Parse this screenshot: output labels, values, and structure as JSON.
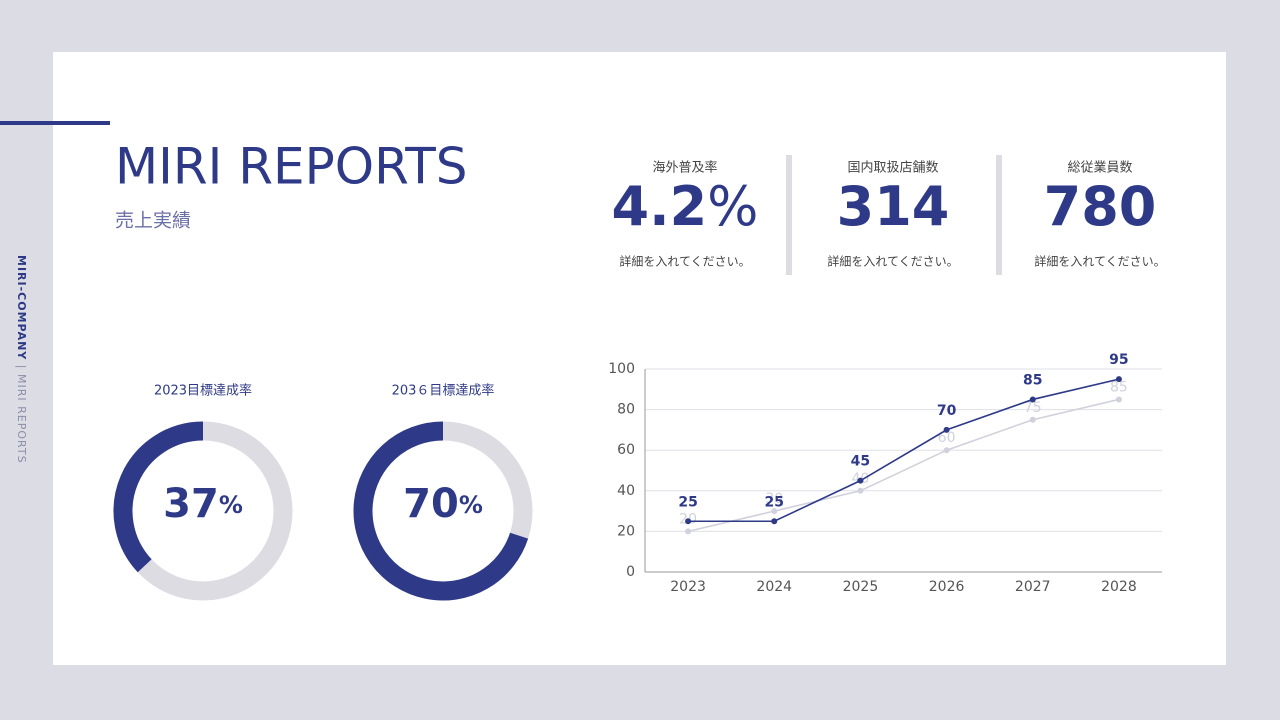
{
  "side": {
    "company": "MIRI-COMPANY",
    "separator": "|",
    "name": "MIRI REPORTS"
  },
  "header": {
    "title": "MIRI REPORTS",
    "subtitle": "売上実績"
  },
  "stats": [
    {
      "label": "海外普及率",
      "value": 4.2,
      "unit": "%",
      "note": "詳細を入れてください。"
    },
    {
      "label": "国内取扱店舗数",
      "value": 314,
      "note": "詳細を入れてください。"
    },
    {
      "label": "総従業員数",
      "value": 780,
      "note": "詳細を入れてください。"
    }
  ],
  "chart_data": [
    {
      "type": "donut",
      "title": "2023目標達成率",
      "values": [
        37
      ],
      "unit": "%",
      "lim": [
        0,
        100
      ],
      "color": "#2e3a87",
      "track_color": "#dcdce2"
    },
    {
      "type": "donut",
      "title": "203６目標達成率",
      "values": [
        70
      ],
      "unit": "%",
      "lim": [
        0,
        100
      ],
      "color": "#2e3a87",
      "track_color": "#dcdce2"
    },
    {
      "type": "line",
      "categories": [
        "2023",
        "2024",
        "2025",
        "2026",
        "2027",
        "2028"
      ],
      "series": [
        {
          "color": "#d0d1dc",
          "values": [
            20,
            30,
            40,
            60,
            75,
            85
          ]
        },
        {
          "color": "#2e3a87",
          "values": [
            25,
            25,
            45,
            70,
            85,
            95
          ]
        }
      ],
      "ylim": [
        0,
        100
      ],
      "yticks": [
        0,
        20,
        40,
        60,
        80,
        100
      ],
      "grid": true
    }
  ]
}
